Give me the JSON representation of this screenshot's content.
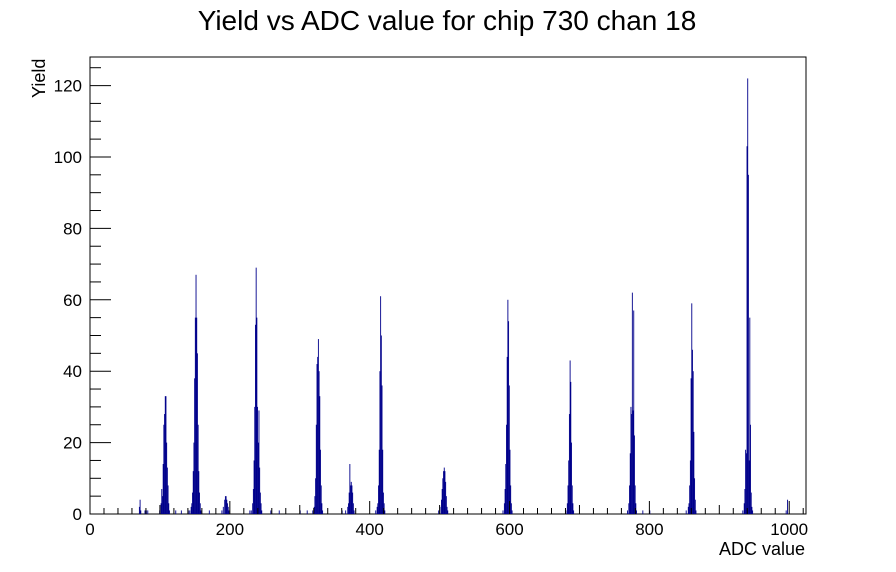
{
  "chart_data": {
    "type": "bar",
    "title": "Yield vs ADC value for chip 730 chan 18",
    "xlabel": "ADC value",
    "ylabel": "Yield",
    "xlim": [
      0,
      1024
    ],
    "ylim": [
      0,
      128
    ],
    "x_ticks": [
      0,
      200,
      400,
      600,
      800,
      1000
    ],
    "y_ticks": [
      0,
      20,
      40,
      60,
      80,
      100,
      120
    ],
    "bar_color": "#00008b",
    "grid": false,
    "legend": "none",
    "bin_width": 1,
    "bins": [
      [
        70,
        2
      ],
      [
        71,
        4
      ],
      [
        72,
        1
      ],
      [
        78,
        1
      ],
      [
        80,
        1
      ],
      [
        82,
        1
      ],
      [
        99,
        1
      ],
      [
        101,
        3
      ],
      [
        102,
        7
      ],
      [
        103,
        5
      ],
      [
        104,
        14
      ],
      [
        105,
        25
      ],
      [
        106,
        28
      ],
      [
        107,
        33
      ],
      [
        108,
        33
      ],
      [
        109,
        20
      ],
      [
        110,
        13
      ],
      [
        111,
        8
      ],
      [
        112,
        3
      ],
      [
        113,
        1
      ],
      [
        122,
        1
      ],
      [
        130,
        1
      ],
      [
        140,
        1
      ],
      [
        142,
        1
      ],
      [
        144,
        2
      ],
      [
        145,
        3
      ],
      [
        146,
        6
      ],
      [
        147,
        12
      ],
      [
        148,
        20
      ],
      [
        149,
        38
      ],
      [
        150,
        55
      ],
      [
        151,
        67
      ],
      [
        152,
        55
      ],
      [
        153,
        45
      ],
      [
        154,
        25
      ],
      [
        155,
        12
      ],
      [
        156,
        6
      ],
      [
        157,
        3
      ],
      [
        158,
        1
      ],
      [
        170,
        1
      ],
      [
        188,
        1
      ],
      [
        190,
        2
      ],
      [
        192,
        4
      ],
      [
        193,
        5
      ],
      [
        194,
        5
      ],
      [
        195,
        4
      ],
      [
        196,
        3
      ],
      [
        197,
        2
      ],
      [
        198,
        1
      ],
      [
        228,
        1
      ],
      [
        230,
        1
      ],
      [
        232,
        3
      ],
      [
        233,
        7
      ],
      [
        234,
        15
      ],
      [
        235,
        30
      ],
      [
        236,
        53
      ],
      [
        237,
        69
      ],
      [
        238,
        55
      ],
      [
        239,
        30
      ],
      [
        240,
        20
      ],
      [
        241,
        29
      ],
      [
        242,
        13
      ],
      [
        243,
        6
      ],
      [
        244,
        3
      ],
      [
        245,
        1
      ],
      [
        258,
        1
      ],
      [
        270,
        1
      ],
      [
        300,
        1
      ],
      [
        310,
        1
      ],
      [
        318,
        1
      ],
      [
        320,
        2
      ],
      [
        321,
        5
      ],
      [
        322,
        10
      ],
      [
        323,
        25
      ],
      [
        324,
        42
      ],
      [
        325,
        44
      ],
      [
        326,
        49
      ],
      [
        327,
        40
      ],
      [
        328,
        33
      ],
      [
        329,
        18
      ],
      [
        330,
        8
      ],
      [
        331,
        3
      ],
      [
        332,
        1
      ],
      [
        360,
        1
      ],
      [
        365,
        1
      ],
      [
        368,
        2
      ],
      [
        369,
        3
      ],
      [
        370,
        6
      ],
      [
        371,
        14
      ],
      [
        372,
        8
      ],
      [
        373,
        9
      ],
      [
        374,
        8
      ],
      [
        375,
        6
      ],
      [
        376,
        3
      ],
      [
        377,
        1
      ],
      [
        408,
        1
      ],
      [
        410,
        2
      ],
      [
        411,
        3
      ],
      [
        412,
        8
      ],
      [
        413,
        18
      ],
      [
        414,
        40
      ],
      [
        415,
        61
      ],
      [
        416,
        50
      ],
      [
        417,
        36
      ],
      [
        418,
        18
      ],
      [
        419,
        6
      ],
      [
        420,
        3
      ],
      [
        421,
        1
      ],
      [
        498,
        1
      ],
      [
        500,
        2
      ],
      [
        502,
        4
      ],
      [
        503,
        7
      ],
      [
        504,
        10
      ],
      [
        505,
        12
      ],
      [
        506,
        13
      ],
      [
        507,
        12
      ],
      [
        508,
        9
      ],
      [
        509,
        5
      ],
      [
        510,
        2
      ],
      [
        511,
        1
      ],
      [
        590,
        1
      ],
      [
        592,
        3
      ],
      [
        593,
        7
      ],
      [
        594,
        14
      ],
      [
        595,
        25
      ],
      [
        596,
        44
      ],
      [
        597,
        60
      ],
      [
        598,
        54
      ],
      [
        599,
        36
      ],
      [
        600,
        18
      ],
      [
        601,
        8
      ],
      [
        602,
        3
      ],
      [
        603,
        1
      ],
      [
        680,
        1
      ],
      [
        682,
        3
      ],
      [
        683,
        8
      ],
      [
        684,
        15
      ],
      [
        685,
        28
      ],
      [
        686,
        43
      ],
      [
        687,
        37
      ],
      [
        688,
        20
      ],
      [
        689,
        8
      ],
      [
        690,
        3
      ],
      [
        691,
        1
      ],
      [
        768,
        1
      ],
      [
        770,
        3
      ],
      [
        771,
        8
      ],
      [
        772,
        17
      ],
      [
        773,
        30
      ],
      [
        774,
        28
      ],
      [
        775,
        62
      ],
      [
        776,
        29
      ],
      [
        777,
        57
      ],
      [
        778,
        22
      ],
      [
        779,
        8
      ],
      [
        780,
        3
      ],
      [
        781,
        1
      ],
      [
        790,
        1
      ],
      [
        800,
        1
      ],
      [
        852,
        1
      ],
      [
        855,
        2
      ],
      [
        856,
        3
      ],
      [
        857,
        8
      ],
      [
        858,
        15
      ],
      [
        859,
        38
      ],
      [
        860,
        59
      ],
      [
        861,
        46
      ],
      [
        862,
        40
      ],
      [
        863,
        23
      ],
      [
        864,
        10
      ],
      [
        865,
        4
      ],
      [
        866,
        1
      ],
      [
        933,
        1
      ],
      [
        935,
        3
      ],
      [
        936,
        7
      ],
      [
        937,
        18
      ],
      [
        938,
        17
      ],
      [
        939,
        103
      ],
      [
        940,
        122
      ],
      [
        941,
        95
      ],
      [
        942,
        15
      ],
      [
        943,
        55
      ],
      [
        944,
        25
      ],
      [
        945,
        6
      ],
      [
        946,
        2
      ],
      [
        947,
        1
      ],
      [
        995,
        1
      ],
      [
        997,
        4
      ]
    ]
  }
}
